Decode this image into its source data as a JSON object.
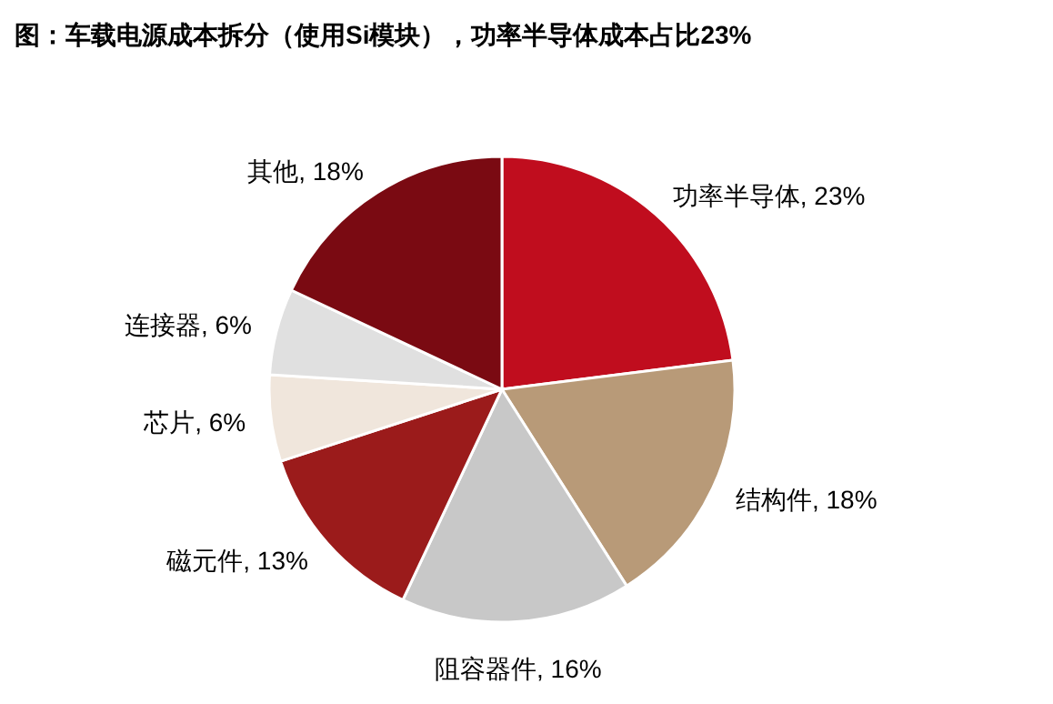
{
  "chart_data": {
    "type": "pie",
    "title": "图：车载电源成本拆分（使用Si模块），功率半导体成本占比23%",
    "categories": [
      "功率半导体",
      "结构件",
      "阻容器件",
      "磁元件",
      "芯片",
      "连接器",
      "其他"
    ],
    "values": [
      23,
      18,
      16,
      13,
      6,
      6,
      18
    ],
    "colors": [
      "#c00d1e",
      "#b89a78",
      "#c8c8c8",
      "#9b1b1b",
      "#f0e6dc",
      "#e0e0e0",
      "#7a0a12"
    ],
    "value_labels": [
      "23%",
      "18%",
      "16%",
      "13%",
      "6%",
      "6%",
      "18%"
    ]
  }
}
